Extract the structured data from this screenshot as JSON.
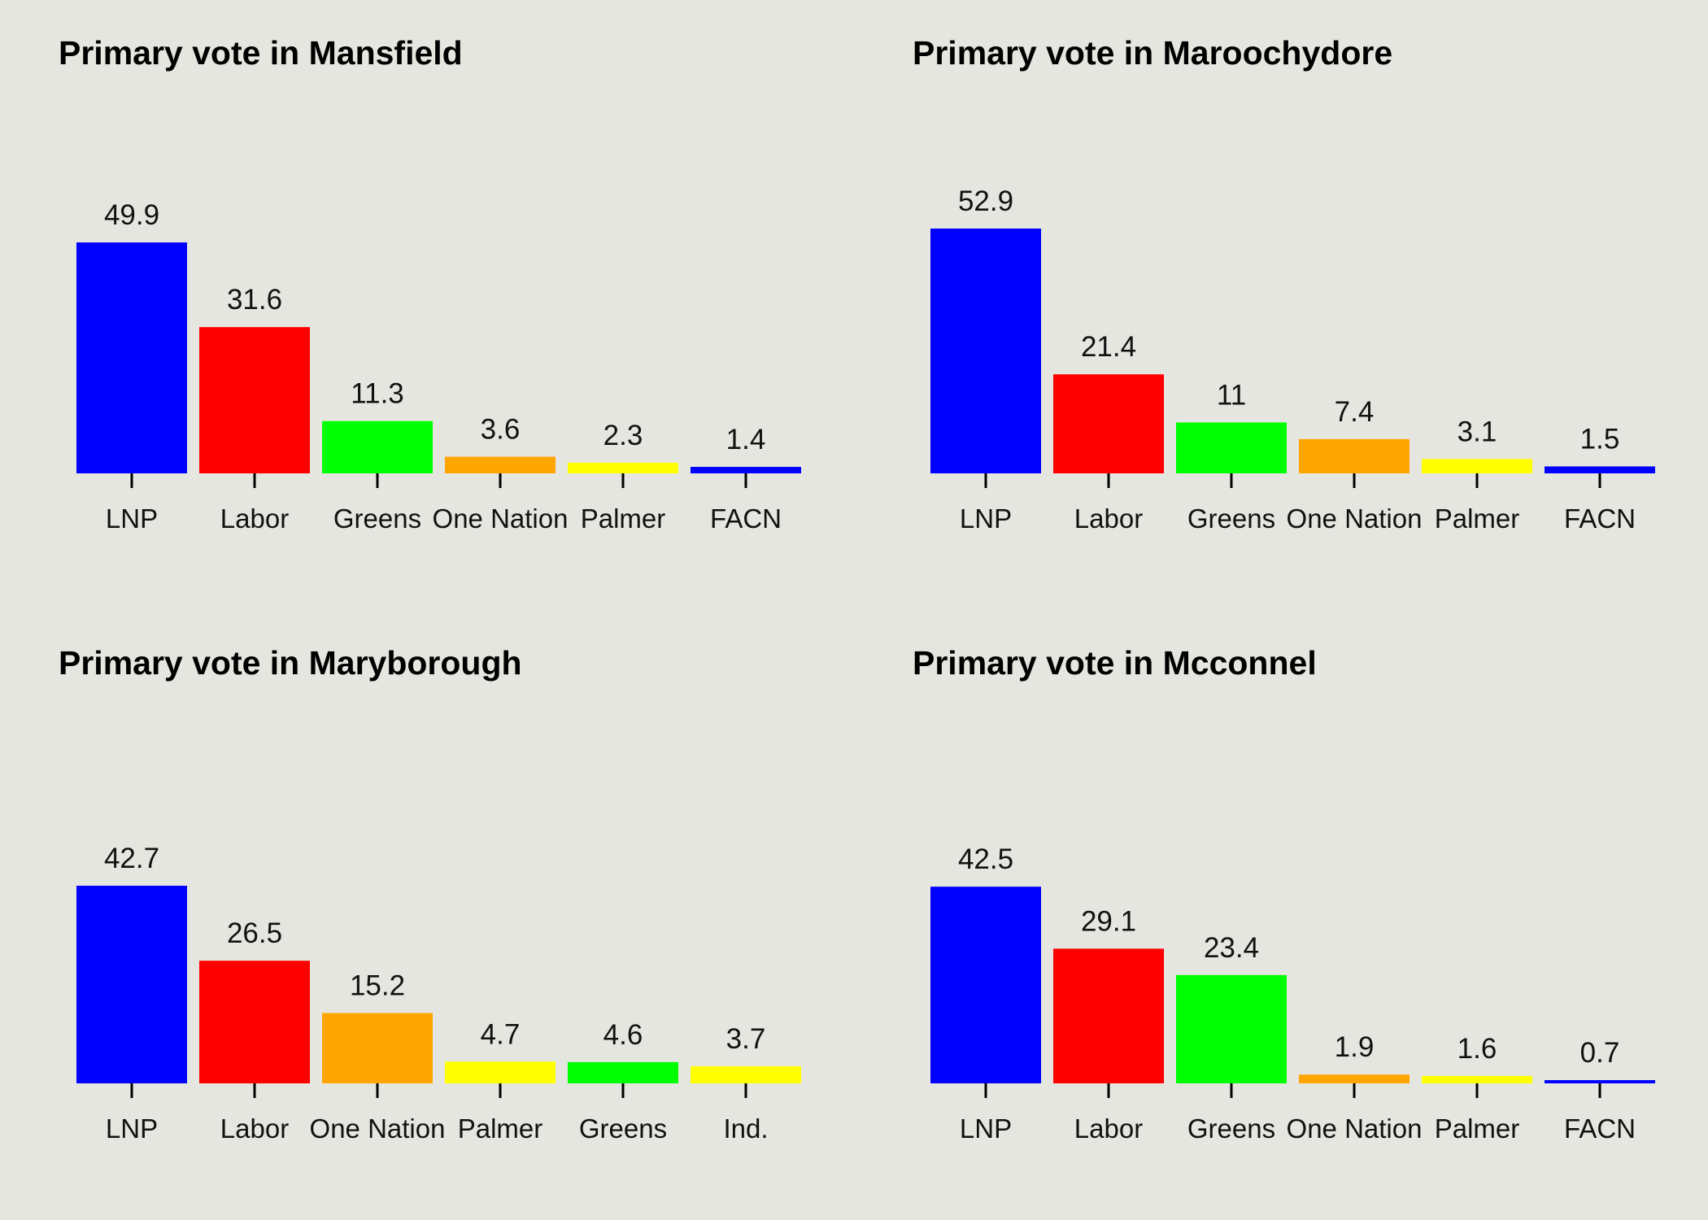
{
  "chart_data": [
    {
      "type": "bar",
      "title": "Primary vote in Mansfield",
      "categories": [
        "LNP",
        "Labor",
        "Greens",
        "One Nation",
        "Palmer",
        "FACN"
      ],
      "values": [
        49.9,
        31.6,
        11.3,
        3.6,
        2.3,
        1.4
      ],
      "colors": [
        "#0000ff",
        "#ff0000",
        "#00ff00",
        "#ffa500",
        "#ffff00",
        "#0000ff"
      ],
      "xlabel": "",
      "ylabel": "",
      "ylim": [
        0,
        58
      ],
      "grid": false
    },
    {
      "type": "bar",
      "title": "Primary vote in Maroochydore",
      "categories": [
        "LNP",
        "Labor",
        "Greens",
        "One Nation",
        "Palmer",
        "FACN"
      ],
      "values": [
        52.9,
        21.4,
        11,
        7.4,
        3.1,
        1.5
      ],
      "colors": [
        "#0000ff",
        "#ff0000",
        "#00ff00",
        "#ffa500",
        "#ffff00",
        "#0000ff"
      ],
      "xlabel": "",
      "ylabel": "",
      "ylim": [
        0,
        58
      ],
      "grid": false
    },
    {
      "type": "bar",
      "title": "Primary vote in Maryborough",
      "categories": [
        "LNP",
        "Labor",
        "One Nation",
        "Palmer",
        "Greens",
        "Ind."
      ],
      "values": [
        42.7,
        26.5,
        15.2,
        4.7,
        4.6,
        3.7
      ],
      "colors": [
        "#0000ff",
        "#ff0000",
        "#ffa500",
        "#ffff00",
        "#00ff00",
        "#ffff00"
      ],
      "xlabel": "",
      "ylabel": "",
      "ylim": [
        0,
        58
      ],
      "grid": false
    },
    {
      "type": "bar",
      "title": "Primary vote in Mcconnel",
      "categories": [
        "LNP",
        "Labor",
        "Greens",
        "One Nation",
        "Palmer",
        "FACN"
      ],
      "values": [
        42.5,
        29.1,
        23.4,
        1.9,
        1.6,
        0.7
      ],
      "colors": [
        "#0000ff",
        "#ff0000",
        "#00ff00",
        "#ffa500",
        "#ffff00",
        "#0000ff"
      ],
      "xlabel": "",
      "ylabel": "",
      "ylim": [
        0,
        58
      ],
      "grid": false
    }
  ]
}
